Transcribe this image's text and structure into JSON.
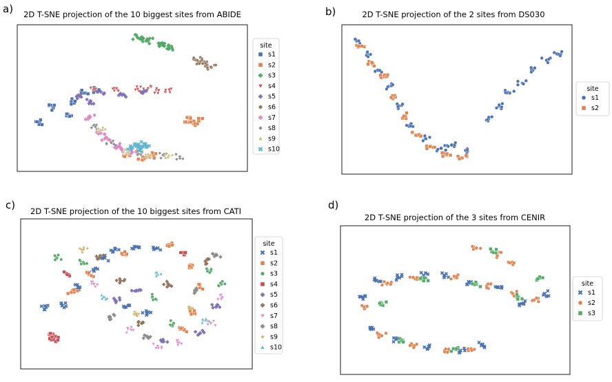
{
  "chart_data": [
    {
      "type": "scatter",
      "panel_label": "a)",
      "title": "2D T-SNE projection of the 10 biggest sites from ABIDE",
      "xlabel": "",
      "ylabel": "",
      "axis_ticks": false,
      "legend": {
        "title": "site",
        "position": "right",
        "labels": [
          "s1",
          "s2",
          "s3",
          "s4",
          "s5",
          "s6",
          "s7",
          "s8",
          "s9",
          "s10"
        ]
      },
      "series": [
        {
          "name": "s1",
          "color": "#4c72b0",
          "marker": "square",
          "points": [
            [
              -0.75,
              -0.15
            ],
            [
              -0.62,
              -0.28
            ],
            [
              -0.45,
              0.08
            ],
            [
              -0.88,
              -0.38
            ],
            [
              -0.35,
              0.12
            ],
            [
              -0.55,
              -0.05
            ]
          ]
        },
        {
          "name": "s2",
          "color": "#dd8452",
          "marker": "square",
          "points": [
            [
              0.52,
              -0.38
            ],
            [
              0.58,
              -0.4
            ],
            [
              0.63,
              -0.36
            ],
            [
              0.55,
              -0.34
            ],
            [
              0.1,
              -0.93
            ],
            [
              0.2,
              -0.9
            ],
            [
              -0.05,
              -0.88
            ]
          ]
        },
        {
          "name": "s3",
          "color": "#55a868",
          "marker": "plus",
          "points": [
            [
              0.05,
              0.95
            ],
            [
              0.15,
              0.9
            ],
            [
              0.25,
              0.86
            ],
            [
              0.35,
              0.78
            ],
            [
              0.1,
              0.93
            ],
            [
              0.3,
              0.82
            ]
          ]
        },
        {
          "name": "s4",
          "color": "#c44e52",
          "marker": "triangle-down",
          "points": [
            [
              -0.35,
              0.12
            ],
            [
              -0.15,
              0.15
            ],
            [
              0.05,
              0.14
            ],
            [
              0.25,
              0.12
            ],
            [
              0.35,
              0.13
            ],
            [
              0.15,
              0.15
            ]
          ]
        },
        {
          "name": "s5",
          "color": "#8172b3",
          "marker": "plus",
          "points": [
            [
              -0.5,
              0.03
            ],
            [
              -0.3,
              0.1
            ],
            [
              -0.1,
              0.05
            ],
            [
              0.1,
              0.08
            ],
            [
              -0.4,
              -0.05
            ]
          ]
        },
        {
          "name": "s6",
          "color": "#937860",
          "marker": "hexagon",
          "points": [
            [
              0.6,
              0.6
            ],
            [
              0.68,
              0.55
            ],
            [
              0.75,
              0.48
            ],
            [
              0.7,
              0.52
            ],
            [
              0.65,
              0.58
            ]
          ]
        },
        {
          "name": "s7",
          "color": "#da8bc3",
          "marker": "plus",
          "points": [
            [
              -0.4,
              -0.3
            ],
            [
              -0.3,
              -0.55
            ],
            [
              -0.15,
              -0.75
            ],
            [
              0.0,
              -0.85
            ],
            [
              -0.25,
              -0.62
            ],
            [
              -0.1,
              -0.8
            ]
          ]
        },
        {
          "name": "s8",
          "color": "#8c8c8c",
          "marker": "diamond",
          "points": [
            [
              -0.35,
              -0.45
            ],
            [
              -0.2,
              -0.7
            ],
            [
              0.05,
              -0.87
            ],
            [
              0.3,
              -0.9
            ],
            [
              0.45,
              -0.92
            ]
          ]
        },
        {
          "name": "s9",
          "color": "#ccb974",
          "marker": "triangle-up",
          "points": [
            [
              -0.3,
              -0.5
            ],
            [
              -0.05,
              -0.85
            ],
            [
              0.15,
              -0.88
            ],
            [
              0.35,
              -0.9
            ]
          ]
        },
        {
          "name": "s10",
          "color": "#64b5cd",
          "marker": "x",
          "points": [
            [
              0.0,
              -0.78
            ],
            [
              0.05,
              -0.74
            ],
            [
              0.1,
              -0.76
            ],
            [
              0.07,
              -0.8
            ],
            [
              0.12,
              -0.72
            ]
          ]
        }
      ]
    },
    {
      "type": "scatter",
      "panel_label": "b)",
      "title": "2D T-SNE projection of the 2 sites from DS030",
      "xlabel": "",
      "ylabel": "",
      "axis_ticks": false,
      "legend": {
        "title": "site",
        "position": "right",
        "labels": [
          "s1",
          "s2"
        ]
      },
      "series": [
        {
          "name": "s1",
          "color": "#4c72b0",
          "marker": "circle",
          "points": [
            [
              -0.95,
              0.9
            ],
            [
              -0.85,
              0.7
            ],
            [
              -0.75,
              0.45
            ],
            [
              -0.65,
              0.2
            ],
            [
              -0.55,
              -0.1
            ],
            [
              -0.45,
              -0.4
            ],
            [
              -0.3,
              -0.6
            ],
            [
              -0.15,
              -0.75
            ],
            [
              -0.05,
              -0.7
            ],
            [
              0.1,
              -0.8
            ],
            [
              0.3,
              -0.3
            ],
            [
              0.4,
              -0.1
            ],
            [
              0.5,
              0.1
            ],
            [
              0.62,
              0.25
            ],
            [
              0.72,
              0.45
            ],
            [
              0.85,
              0.6
            ],
            [
              0.95,
              0.7
            ]
          ]
        },
        {
          "name": "s2",
          "color": "#dd8452",
          "marker": "square",
          "points": [
            [
              -0.92,
              0.82
            ],
            [
              -0.8,
              0.55
            ],
            [
              -0.7,
              0.35
            ],
            [
              -0.6,
              0.05
            ],
            [
              -0.5,
              -0.25
            ],
            [
              -0.38,
              -0.55
            ],
            [
              -0.25,
              -0.72
            ],
            [
              -0.1,
              -0.85
            ],
            [
              0.05,
              -0.9
            ]
          ]
        }
      ]
    },
    {
      "type": "scatter",
      "panel_label": "c)",
      "title": "2D T-SNE projection of the 10 biggest sites from CATI",
      "xlabel": "",
      "ylabel": "",
      "axis_ticks": false,
      "legend": {
        "title": "site",
        "position": "right",
        "labels": [
          "s1",
          "s2",
          "s3",
          "s4",
          "s5",
          "s6",
          "s7",
          "s8",
          "s9",
          "s10"
        ]
      },
      "series": [
        {
          "name": "s1",
          "color": "#4c72b0",
          "marker": "x",
          "points": [
            [
              -0.85,
              -0.2
            ],
            [
              -0.7,
              -0.18
            ],
            [
              -0.55,
              0.1
            ],
            [
              -0.4,
              0.35
            ],
            [
              -0.3,
              0.55
            ],
            [
              -0.2,
              0.68
            ],
            [
              0.0,
              0.72
            ],
            [
              0.2,
              0.7
            ],
            [
              -0.1,
              -0.2
            ],
            [
              0.1,
              -0.3
            ]
          ]
        },
        {
          "name": "s2",
          "color": "#dd8452",
          "marker": "square",
          "points": [
            [
              -0.6,
              0.05
            ],
            [
              -0.45,
              0.3
            ],
            [
              -0.1,
              0.6
            ],
            [
              0.3,
              0.75
            ],
            [
              0.5,
              0.4
            ],
            [
              0.6,
              0.1
            ],
            [
              0.55,
              -0.3
            ],
            [
              0.45,
              -0.55
            ]
          ]
        },
        {
          "name": "s3",
          "color": "#55a868",
          "marker": "hexagon",
          "points": [
            [
              -0.75,
              0.55
            ],
            [
              -0.5,
              0.48
            ],
            [
              0.15,
              -0.05
            ],
            [
              0.35,
              -0.45
            ],
            [
              0.7,
              0.35
            ],
            [
              0.8,
              0.15
            ]
          ]
        },
        {
          "name": "s4",
          "color": "#c44e52",
          "marker": "square",
          "points": [
            [
              -0.8,
              -0.65
            ],
            [
              -0.78,
              -0.7
            ],
            [
              -0.82,
              -0.62
            ],
            [
              -0.65,
              0.3
            ],
            [
              0.45,
              0.6
            ]
          ]
        },
        {
          "name": "s5",
          "color": "#8172b3",
          "marker": "plus",
          "points": [
            [
              -0.2,
              -0.1
            ],
            [
              0.0,
              0.05
            ],
            [
              0.25,
              -0.7
            ],
            [
              0.6,
              -0.6
            ],
            [
              0.75,
              -0.2
            ]
          ]
        },
        {
          "name": "s6",
          "color": "#937860",
          "marker": "plus",
          "points": [
            [
              -0.35,
              0.55
            ],
            [
              -0.15,
              0.2
            ],
            [
              0.05,
              -0.45
            ],
            [
              0.3,
              0.15
            ],
            [
              0.65,
              0.5
            ]
          ]
        },
        {
          "name": "s7",
          "color": "#da8bc3",
          "marker": "triangle-down",
          "points": [
            [
              -0.4,
              0.15
            ],
            [
              -0.05,
              -0.55
            ],
            [
              0.2,
              -0.8
            ],
            [
              0.4,
              -0.75
            ],
            [
              0.7,
              -0.45
            ],
            [
              0.8,
              -0.05
            ]
          ]
        },
        {
          "name": "s8",
          "color": "#8c8c8c",
          "marker": "plus",
          "points": [
            [
              -0.25,
              -0.35
            ],
            [
              0.1,
              -0.65
            ],
            [
              0.55,
              0.05
            ],
            [
              0.75,
              0.6
            ]
          ]
        },
        {
          "name": "s9",
          "color": "#ccb974",
          "marker": "star",
          "points": [
            [
              -0.5,
              0.68
            ],
            [
              0.0,
              -0.3
            ],
            [
              0.5,
              -0.2
            ]
          ]
        },
        {
          "name": "s10",
          "color": "#64b5cd",
          "marker": "triangle-up",
          "points": [
            [
              -0.3,
              -0.05
            ],
            [
              0.2,
              0.3
            ],
            [
              0.65,
              -0.4
            ]
          ]
        }
      ]
    },
    {
      "type": "scatter",
      "panel_label": "d)",
      "title": "2D T-SNE projection of the 3 sites from CENIR",
      "xlabel": "",
      "ylabel": "",
      "axis_ticks": false,
      "legend": {
        "title": "site",
        "position": "right",
        "labels": [
          "s1",
          "s2",
          "s3"
        ]
      },
      "series": [
        {
          "name": "s1",
          "color": "#4c72b0",
          "marker": "x",
          "points": [
            [
              -0.9,
              0.05
            ],
            [
              -0.75,
              0.3
            ],
            [
              -0.55,
              0.35
            ],
            [
              -0.3,
              0.38
            ],
            [
              -0.1,
              0.38
            ],
            [
              0.15,
              0.28
            ],
            [
              0.4,
              0.2
            ],
            [
              0.65,
              -0.05
            ],
            [
              0.85,
              0.1
            ],
            [
              -0.8,
              -0.45
            ],
            [
              -0.55,
              -0.6
            ],
            [
              -0.25,
              -0.72
            ],
            [
              0.05,
              -0.78
            ],
            [
              0.25,
              -0.7
            ]
          ]
        },
        {
          "name": "s2",
          "color": "#dd8452",
          "marker": "circle",
          "points": [
            [
              -0.85,
              -0.1
            ],
            [
              -0.65,
              0.25
            ],
            [
              -0.4,
              0.35
            ],
            [
              0.0,
              0.35
            ],
            [
              0.3,
              0.22
            ],
            [
              0.55,
              0.1
            ],
            [
              0.75,
              0.0
            ],
            [
              -0.7,
              -0.55
            ],
            [
              -0.4,
              -0.7
            ],
            [
              -0.1,
              -0.78
            ],
            [
              0.15,
              -0.75
            ],
            [
              0.2,
              0.8
            ],
            [
              0.4,
              0.7
            ],
            [
              0.55,
              0.55
            ]
          ]
        },
        {
          "name": "s3",
          "color": "#55a868",
          "marker": "square",
          "points": [
            [
              -0.7,
              -0.05
            ],
            [
              -0.3,
              0.3
            ],
            [
              0.2,
              0.25
            ],
            [
              0.6,
              0.05
            ],
            [
              -0.5,
              -0.62
            ],
            [
              0.0,
              -0.75
            ],
            [
              0.35,
              0.75
            ],
            [
              0.8,
              0.35
            ]
          ]
        }
      ]
    }
  ]
}
